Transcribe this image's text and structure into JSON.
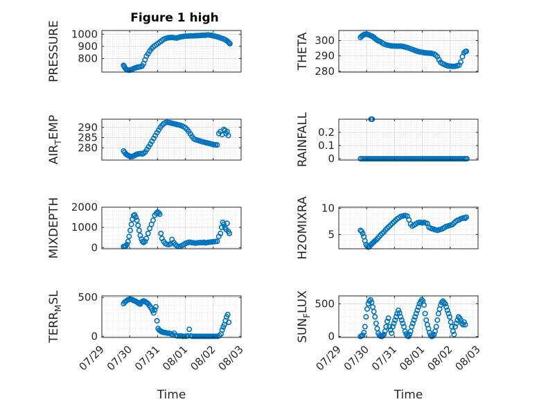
{
  "figure": {
    "title": "Figure 1 high",
    "marker_color": "#0072BD",
    "grid": true,
    "minor_grid": true
  },
  "chart_data": [
    {
      "type": "scatter",
      "id": "pressure",
      "title": "Figure 1 high",
      "ylabel": "PRESSURE",
      "xlabel": "",
      "xlim": [
        "07/29",
        "08/03"
      ],
      "ylim": [
        690,
        1030
      ],
      "yticks": [
        800,
        900,
        1000
      ],
      "ytick_labels": [
        "800",
        "900",
        "1000"
      ],
      "x": [
        0.78,
        0.8,
        0.82,
        0.85,
        0.88,
        0.92,
        0.96,
        1.0,
        1.04,
        1.08,
        1.12,
        1.16,
        1.2,
        1.25,
        1.3,
        1.35,
        1.4,
        1.45,
        1.5,
        1.55,
        1.6,
        1.66,
        1.72,
        1.78,
        1.84,
        1.9,
        1.96,
        2.02,
        2.08,
        2.14,
        2.2,
        2.26,
        2.32,
        2.38,
        2.44,
        2.5,
        2.56,
        2.62,
        2.68,
        2.74,
        2.8,
        2.86,
        2.92,
        2.98,
        3.04,
        3.1,
        3.16,
        3.22,
        3.28,
        3.34,
        3.4,
        3.46,
        3.52,
        3.58,
        3.64,
        3.7,
        3.76,
        3.82,
        3.88,
        3.94,
        4.0,
        4.06,
        4.12,
        4.18,
        4.24,
        4.3,
        4.36,
        4.42,
        4.48,
        4.52,
        4.56,
        4.58,
        4.6
      ],
      "y": [
        745,
        738,
        728,
        718,
        712,
        708,
        706,
        705,
        708,
        712,
        716,
        720,
        724,
        728,
        730,
        732,
        735,
        740,
        760,
        790,
        820,
        840,
        862,
        880,
        895,
        905,
        915,
        925,
        935,
        945,
        955,
        962,
        967,
        970,
        972,
        973,
        972,
        970,
        968,
        972,
        976,
        979,
        981,
        983,
        984,
        985,
        986,
        986,
        986,
        987,
        988,
        988,
        989,
        990,
        992,
        990,
        993,
        994,
        992,
        990,
        986,
        983,
        980,
        976,
        971,
        966,
        962,
        955,
        948,
        940,
        932,
        926,
        922
      ]
    },
    {
      "type": "scatter",
      "id": "theta",
      "ylabel": "THETA",
      "xlabel": "",
      "xlim": [
        "07/29",
        "08/03"
      ],
      "ylim": [
        279.5,
        306.5
      ],
      "yticks": [
        280,
        290,
        300
      ],
      "ytick_labels": [
        "280",
        "290",
        "300"
      ],
      "x": [
        0.78,
        0.82,
        0.86,
        0.9,
        0.94,
        0.98,
        1.02,
        1.06,
        1.1,
        1.14,
        1.18,
        1.22,
        1.26,
        1.3,
        1.35,
        1.4,
        1.45,
        1.5,
        1.56,
        1.62,
        1.68,
        1.74,
        1.8,
        1.86,
        1.92,
        1.98,
        2.04,
        2.1,
        2.16,
        2.22,
        2.28,
        2.34,
        2.4,
        2.46,
        2.52,
        2.58,
        2.64,
        2.7,
        2.76,
        2.82,
        2.88,
        2.94,
        3.0,
        3.06,
        3.12,
        3.18,
        3.24,
        3.3,
        3.36,
        3.42,
        3.48,
        3.54,
        3.6,
        3.66,
        3.72,
        3.78,
        3.84,
        3.9,
        3.96,
        4.02,
        4.08,
        4.14,
        4.2,
        4.26,
        4.32,
        4.38,
        4.44,
        4.5,
        4.54,
        4.58
      ],
      "y": [
        302.0,
        302.8,
        303.3,
        303.8,
        304.0,
        304.1,
        304.0,
        303.8,
        303.5,
        303.2,
        302.9,
        302.5,
        302.0,
        301.3,
        300.6,
        300.0,
        299.5,
        299.2,
        298.4,
        297.8,
        297.3,
        297.0,
        296.8,
        296.6,
        296.5,
        296.4,
        296.4,
        296.3,
        296.3,
        296.4,
        296.2,
        296.0,
        295.7,
        295.4,
        295.0,
        294.6,
        294.2,
        293.8,
        293.4,
        293.0,
        292.7,
        292.5,
        292.3,
        292.1,
        292.0,
        291.9,
        291.8,
        291.7,
        291.5,
        291.2,
        290.5,
        289.5,
        287.5,
        285.8,
        285.0,
        284.5,
        284.0,
        283.6,
        283.4,
        283.3,
        283.2,
        283.2,
        283.4,
        283.6,
        284.0,
        286.0,
        289.5,
        292.0,
        292.8,
        293.0
      ]
    },
    {
      "type": "scatter",
      "id": "air_temp",
      "ylabel": "AIR_TEMP",
      "xlabel": "",
      "xlim": [
        "07/29",
        "08/03"
      ],
      "ylim": [
        274,
        294
      ],
      "yticks": [
        280,
        285,
        290
      ],
      "ytick_labels": [
        "280",
        "285",
        "290"
      ],
      "x": [
        0.78,
        0.82,
        0.86,
        0.9,
        0.94,
        0.98,
        1.02,
        1.06,
        1.1,
        1.14,
        1.18,
        1.22,
        1.26,
        1.3,
        1.35,
        1.4,
        1.45,
        1.5,
        1.56,
        1.62,
        1.68,
        1.74,
        1.8,
        1.86,
        1.92,
        1.98,
        2.04,
        2.1,
        2.16,
        2.22,
        2.28,
        2.34,
        2.4,
        2.46,
        2.52,
        2.58,
        2.64,
        2.7,
        2.76,
        2.82,
        2.88,
        2.94,
        3.0,
        3.06,
        3.12,
        3.18,
        3.24,
        3.3,
        3.36,
        3.42,
        3.48,
        3.54,
        3.6,
        3.66,
        3.72,
        3.78,
        3.84,
        3.9,
        3.96,
        4.02,
        4.08,
        4.14,
        4.2,
        4.26,
        4.32,
        4.38,
        4.42,
        4.46,
        4.5,
        4.54
      ],
      "y": [
        278.5,
        277.8,
        277.0,
        276.6,
        276.3,
        276.0,
        275.8,
        275.7,
        275.8,
        276.0,
        276.3,
        276.6,
        276.9,
        277.0,
        277.1,
        277.2,
        277.0,
        277.3,
        278.0,
        279.2,
        280.5,
        281.8,
        283.2,
        284.6,
        286.0,
        287.4,
        288.7,
        290.0,
        291.0,
        291.8,
        292.3,
        292.5,
        292.4,
        292.2,
        292.0,
        291.8,
        291.6,
        291.4,
        291.2,
        291.0,
        290.7,
        290.3,
        289.8,
        289.0,
        288.0,
        286.8,
        285.5,
        284.5,
        284.0,
        283.8,
        283.5,
        283.3,
        283.0,
        282.8,
        282.6,
        282.4,
        282.2,
        282.0,
        281.8,
        281.5,
        281.5,
        281.4,
        287.0,
        288.0,
        286.5,
        289.0,
        288.5,
        287.0,
        288.0,
        286.0
      ]
    },
    {
      "type": "scatter",
      "id": "rainfall",
      "ylabel": "RAINFALL",
      "xlabel": "",
      "xlim": [
        "07/29",
        "08/03"
      ],
      "ylim": [
        -0.01,
        0.3
      ],
      "yticks": [
        0,
        0.1,
        0.2
      ],
      "ytick_labels": [
        "0",
        "0.1",
        "0.2"
      ],
      "x": [
        0.78,
        0.84,
        0.9,
        0.96,
        1.02,
        1.08,
        1.14,
        1.2,
        1.26,
        1.32,
        1.38,
        1.44,
        1.5,
        1.56,
        1.62,
        1.68,
        1.74,
        1.8,
        1.86,
        1.92,
        1.98,
        2.04,
        2.1,
        2.16,
        2.22,
        2.28,
        2.34,
        2.4,
        2.46,
        2.52,
        2.58,
        2.64,
        2.7,
        2.76,
        2.82,
        2.88,
        2.94,
        3.0,
        3.06,
        3.12,
        3.18,
        3.24,
        3.3,
        3.36,
        3.42,
        3.48,
        3.54,
        3.6,
        3.66,
        3.72,
        3.78,
        3.84,
        3.9,
        3.96,
        4.02,
        4.08,
        4.14,
        4.2,
        4.26,
        4.32,
        4.38,
        4.44,
        4.5,
        4.56,
        4.6,
        1.16,
        1.18,
        1.2
      ],
      "y": [
        0,
        0,
        0,
        0,
        0,
        0,
        0,
        0,
        0,
        0,
        0,
        0,
        0,
        0,
        0,
        0,
        0,
        0,
        0,
        0,
        0,
        0,
        0,
        0,
        0,
        0,
        0,
        0,
        0,
        0,
        0,
        0,
        0,
        0,
        0,
        0,
        0,
        0,
        0,
        0,
        0,
        0,
        0,
        0,
        0,
        0,
        0,
        0,
        0,
        0,
        0,
        0,
        0,
        0,
        0,
        0,
        0,
        0,
        0,
        0,
        0,
        0,
        0,
        0,
        0,
        0.3,
        0.3,
        0.3
      ]
    },
    {
      "type": "scatter",
      "id": "mixdepth",
      "ylabel": "MIXDEPTH",
      "xlabel": "",
      "xlim": [
        "07/29",
        "08/03"
      ],
      "ylim": [
        -60,
        2000
      ],
      "yticks": [
        0,
        1000,
        2000
      ],
      "ytick_labels": [
        "0",
        "1000",
        "2000"
      ],
      "x": [
        0.78,
        0.82,
        0.86,
        0.9,
        0.94,
        0.98,
        1.02,
        1.06,
        1.1,
        1.14,
        1.18,
        1.22,
        1.26,
        1.3,
        1.34,
        1.38,
        1.42,
        1.46,
        1.5,
        1.55,
        1.6,
        1.66,
        1.72,
        1.78,
        1.84,
        1.9,
        1.96,
        2.0,
        2.04,
        2.08,
        2.12,
        2.16,
        2.22,
        2.28,
        2.34,
        2.4,
        2.46,
        2.52,
        2.58,
        2.64,
        2.7,
        2.76,
        2.82,
        2.88,
        2.94,
        3.0,
        3.06,
        3.12,
        3.18,
        3.24,
        3.3,
        3.36,
        3.42,
        3.48,
        3.54,
        3.6,
        3.66,
        3.72,
        3.78,
        3.84,
        3.9,
        3.96,
        4.02,
        4.08,
        4.14,
        4.2,
        4.26,
        4.3,
        4.34,
        4.38,
        4.42,
        4.46,
        4.5,
        4.54,
        4.58
      ],
      "y": [
        50,
        60,
        80,
        150,
        300,
        550,
        850,
        1150,
        1400,
        1580,
        1620,
        1500,
        1350,
        1100,
        850,
        600,
        420,
        300,
        250,
        300,
        450,
        700,
        950,
        1150,
        1350,
        1600,
        1700,
        1760,
        1720,
        1650,
        700,
        450,
        300,
        200,
        160,
        150,
        180,
        400,
        250,
        150,
        80,
        50,
        60,
        100,
        150,
        200,
        230,
        260,
        260,
        240,
        230,
        220,
        230,
        240,
        250,
        240,
        260,
        230,
        250,
        260,
        270,
        280,
        290,
        300,
        310,
        550,
        700,
        1000,
        1250,
        1150,
        1000,
        900,
        1200,
        800,
        700
      ]
    },
    {
      "type": "scatter",
      "id": "h2omixra",
      "ylabel": "H2OMIXRA",
      "xlabel": "",
      "xlim": [
        "07/29",
        "08/03"
      ],
      "ylim": [
        2.3,
        10.2
      ],
      "yticks": [
        5,
        10
      ],
      "ytick_labels": [
        "5",
        "10"
      ],
      "x": [
        0.78,
        0.82,
        0.86,
        0.9,
        0.94,
        0.98,
        1.02,
        1.06,
        1.1,
        1.14,
        1.18,
        1.22,
        1.26,
        1.3,
        1.35,
        1.4,
        1.45,
        1.5,
        1.56,
        1.62,
        1.68,
        1.74,
        1.8,
        1.86,
        1.92,
        1.98,
        2.04,
        2.1,
        2.16,
        2.22,
        2.28,
        2.34,
        2.4,
        2.46,
        2.52,
        2.58,
        2.64,
        2.7,
        2.76,
        2.82,
        2.88,
        2.94,
        3.0,
        3.06,
        3.12,
        3.18,
        3.24,
        3.3,
        3.36,
        3.42,
        3.48,
        3.54,
        3.6,
        3.66,
        3.72,
        3.78,
        3.84,
        3.9,
        3.96,
        4.02,
        4.08,
        4.14,
        4.2,
        4.26,
        4.32,
        4.38,
        4.44,
        4.5,
        4.54,
        4.58
      ],
      "y": [
        5.8,
        5.6,
        5.2,
        4.6,
        3.8,
        3.1,
        2.8,
        2.6,
        2.7,
        3.0,
        3.2,
        3.4,
        3.6,
        3.8,
        4.0,
        4.3,
        4.6,
        4.9,
        5.2,
        5.5,
        5.9,
        6.2,
        6.5,
        6.8,
        7.1,
        7.4,
        7.7,
        8.0,
        8.2,
        8.4,
        8.5,
        8.6,
        8.6,
        8.5,
        7.8,
        7.0,
        6.6,
        6.8,
        7.0,
        7.2,
        7.3,
        7.3,
        7.2,
        7.3,
        7.2,
        7.1,
        6.4,
        6.2,
        6.1,
        6.0,
        5.9,
        5.8,
        5.9,
        6.0,
        6.1,
        6.3,
        6.5,
        6.6,
        6.7,
        6.8,
        6.9,
        7.2,
        7.5,
        7.7,
        7.8,
        8.0,
        8.1,
        8.2,
        8.1,
        8.3
      ]
    },
    {
      "type": "scatter",
      "id": "terr_msl",
      "ylabel": "TERR_MSL",
      "xlabel": "Time",
      "xlim": [
        "07/29",
        "08/03"
      ],
      "ylim": [
        -15,
        520
      ],
      "yticks": [
        0,
        500
      ],
      "ytick_labels": [
        "0",
        "500"
      ],
      "x": [
        0.78,
        0.82,
        0.86,
        0.9,
        0.94,
        0.98,
        1.02,
        1.06,
        1.1,
        1.14,
        1.18,
        1.22,
        1.26,
        1.3,
        1.34,
        1.38,
        1.42,
        1.46,
        1.5,
        1.54,
        1.58,
        1.62,
        1.66,
        1.7,
        1.74,
        1.78,
        1.82,
        1.86,
        1.9,
        1.94,
        1.98,
        2.02,
        2.06,
        2.1,
        2.14,
        2.18,
        2.22,
        2.26,
        2.3,
        2.36,
        2.42,
        2.48,
        2.54,
        2.6,
        2.66,
        2.72,
        2.78,
        2.84,
        2.9,
        2.96,
        3.02,
        3.08,
        3.14,
        3.2,
        3.26,
        3.32,
        3.38,
        3.44,
        3.5,
        3.56,
        3.62,
        3.68,
        3.74,
        3.8,
        3.86,
        3.92,
        3.98,
        4.04,
        4.1,
        4.16,
        4.22,
        4.28,
        4.32,
        4.36,
        4.4,
        4.44,
        4.48,
        4.52,
        4.56
      ],
      "y": [
        420,
        440,
        450,
        460,
        470,
        475,
        478,
        475,
        470,
        460,
        455,
        450,
        440,
        430,
        420,
        415,
        440,
        450,
        455,
        450,
        440,
        430,
        420,
        400,
        380,
        360,
        330,
        300,
        340,
        380,
        200,
        100,
        80,
        70,
        60,
        55,
        50,
        50,
        45,
        40,
        40,
        30,
        20,
        40,
        10,
        5,
        5,
        5,
        0,
        0,
        0,
        5,
        90,
        5,
        0,
        0,
        0,
        0,
        0,
        0,
        0,
        0,
        0,
        0,
        0,
        0,
        0,
        0,
        0,
        0,
        10,
        30,
        80,
        120,
        150,
        200,
        250,
        280,
        180
      ]
    },
    {
      "type": "scatter",
      "id": "sun_flux",
      "ylabel": "SUN_FLUX",
      "xlabel": "Time",
      "xlim": [
        "07/29",
        "08/03"
      ],
      "ylim": [
        -15,
        620
      ],
      "yticks": [
        0,
        500
      ],
      "ytick_labels": [
        "0",
        "500"
      ],
      "x": [
        0.78,
        0.82,
        0.86,
        0.9,
        0.94,
        0.98,
        1.02,
        1.06,
        1.1,
        1.14,
        1.18,
        1.22,
        1.26,
        1.3,
        1.34,
        1.38,
        1.42,
        1.46,
        1.5,
        1.54,
        1.58,
        1.62,
        1.66,
        1.7,
        1.74,
        1.78,
        1.82,
        1.86,
        1.9,
        1.94,
        1.98,
        2.02,
        2.06,
        2.1,
        2.14,
        2.18,
        2.22,
        2.26,
        2.3,
        2.34,
        2.38,
        2.42,
        2.46,
        2.5,
        2.54,
        2.58,
        2.62,
        2.66,
        2.7,
        2.74,
        2.78,
        2.82,
        2.86,
        2.9,
        2.94,
        2.98,
        3.02,
        3.06,
        3.1,
        3.14,
        3.18,
        3.22,
        3.26,
        3.3,
        3.34,
        3.38,
        3.42,
        3.46,
        3.5,
        3.54,
        3.58,
        3.62,
        3.66,
        3.7,
        3.74,
        3.78,
        3.82,
        3.86,
        3.9,
        3.94,
        3.98,
        4.02,
        4.06,
        4.1,
        4.14,
        4.18,
        4.22,
        4.26,
        4.3,
        4.34,
        4.38,
        4.42,
        4.46,
        4.5,
        4.54
      ],
      "y": [
        0,
        10,
        20,
        60,
        150,
        300,
        420,
        500,
        540,
        560,
        520,
        450,
        380,
        300,
        200,
        120,
        50,
        20,
        5,
        0,
        10,
        30,
        80,
        150,
        230,
        280,
        150,
        100,
        50,
        150,
        200,
        250,
        300,
        350,
        400,
        360,
        300,
        250,
        200,
        150,
        80,
        40,
        10,
        0,
        30,
        80,
        150,
        200,
        250,
        300,
        350,
        400,
        450,
        500,
        530,
        560,
        540,
        480,
        350,
        250,
        180,
        120,
        60,
        20,
        0,
        10,
        30,
        80,
        150,
        250,
        350,
        420,
        480,
        520,
        540,
        520,
        500,
        450,
        400,
        350,
        300,
        220,
        150,
        80,
        30,
        150,
        200,
        250,
        300,
        280,
        250,
        200,
        180,
        220,
        180
      ]
    }
  ],
  "shared_x": {
    "xticks": [
      0,
      1,
      2,
      3,
      4,
      5
    ],
    "xtick_labels": [
      "07/29",
      "07/30",
      "07/31",
      "08/01",
      "08/02",
      "08/03"
    ]
  }
}
